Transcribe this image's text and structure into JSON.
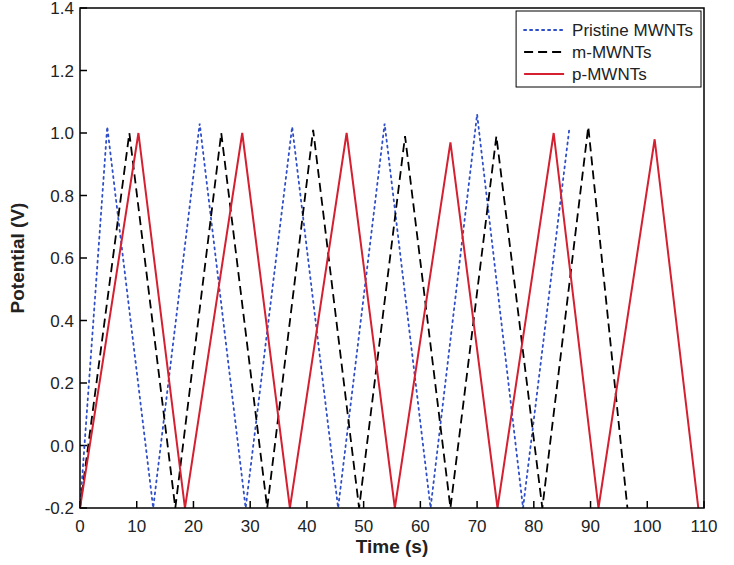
{
  "chart_data": {
    "type": "line",
    "x_label": "Time (s)",
    "y_label": "Potential (V)",
    "xlim": [
      0,
      110
    ],
    "xticks": [
      0,
      10,
      20,
      30,
      40,
      50,
      60,
      70,
      80,
      90,
      100,
      110
    ],
    "ylim": [
      -0.2,
      1.4
    ],
    "yticks": [
      -0.2,
      {
        "value": 0,
        "label": "0.0"
      },
      0.2,
      0.4,
      0.6,
      0.8,
      {
        "value": 1,
        "label": "1.0"
      },
      1.2,
      1.4
    ],
    "legend": "upper right",
    "grid": false,
    "series": [
      {
        "name": "Pristine MWNTs",
        "color": "#2f4fc8",
        "line_style": "dotted",
        "x": [
          0,
          4.8,
          12.9,
          21.1,
          29.2,
          37.4,
          45.5,
          53.7,
          61.8,
          70.0,
          78.1,
          86.3
        ],
        "values": [
          -0.2,
          1.02,
          -0.2,
          1.03,
          -0.2,
          1.02,
          -0.2,
          1.03,
          -0.2,
          1.06,
          -0.2,
          1.02
        ]
      },
      {
        "name": "m-MWNTs",
        "color": "#000000",
        "line_style": "dashed",
        "x": [
          0,
          8.7,
          16.8,
          24.9,
          33.0,
          41.1,
          49.2,
          57.3,
          65.3,
          73.4,
          81.5,
          89.6,
          96.5
        ],
        "values": [
          -0.2,
          1.0,
          -0.2,
          1.0,
          -0.2,
          1.01,
          -0.2,
          0.99,
          -0.2,
          0.99,
          -0.2,
          1.02,
          -0.2
        ]
      },
      {
        "name": "p-MWNTs",
        "color": "#d42030",
        "line_style": "solid",
        "x": [
          0,
          10.3,
          18.5,
          28.6,
          37.0,
          47.0,
          55.5,
          65.3,
          73.6,
          83.5,
          91.4,
          101.3,
          109.0
        ],
        "values": [
          -0.2,
          1.0,
          -0.2,
          1.0,
          -0.2,
          1.0,
          -0.2,
          0.97,
          -0.2,
          1.0,
          -0.2,
          0.98,
          -0.2
        ]
      }
    ]
  }
}
